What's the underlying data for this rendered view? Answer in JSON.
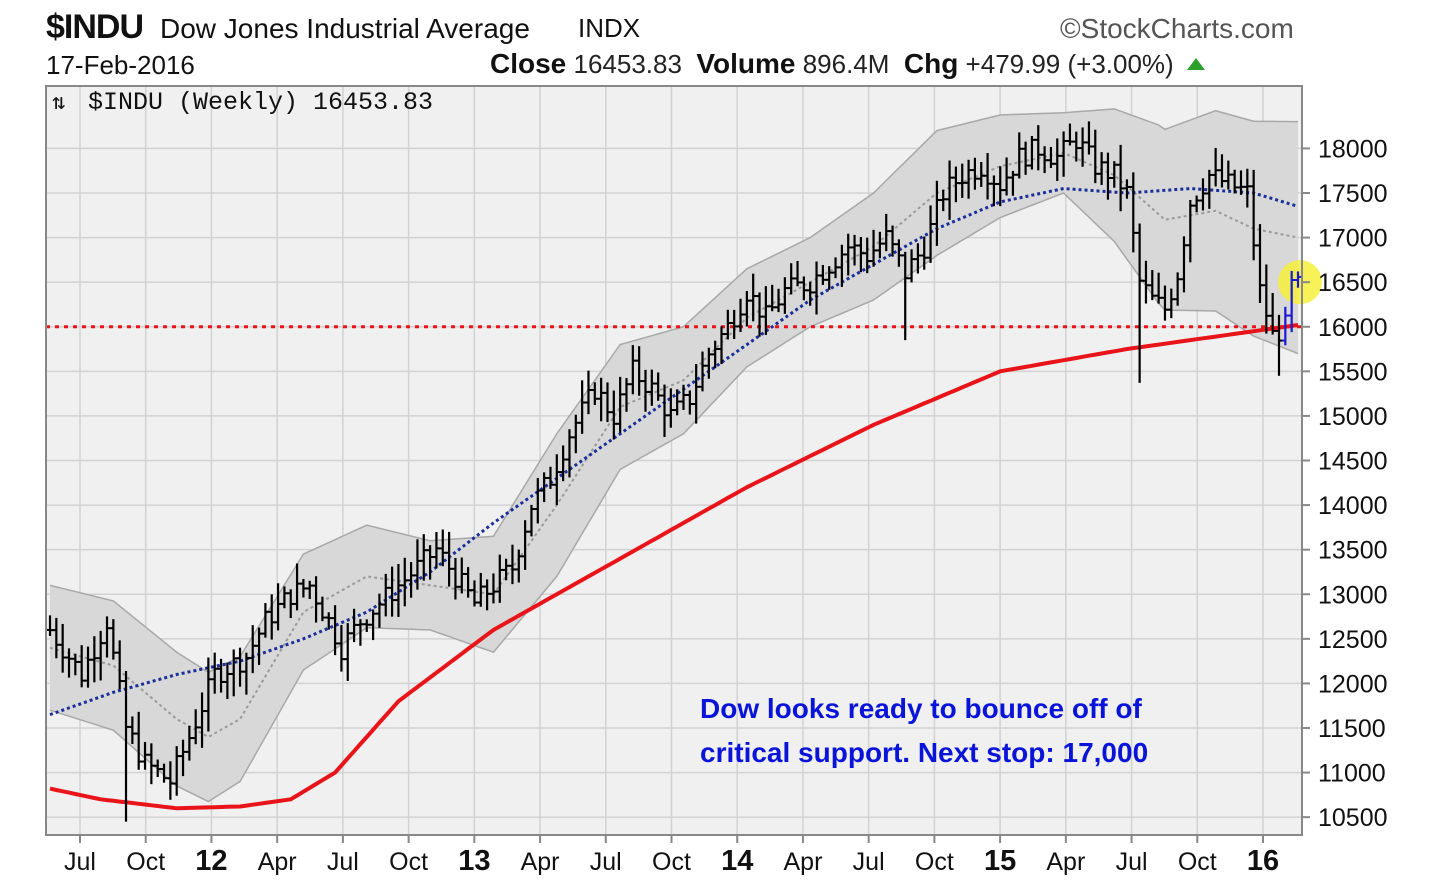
{
  "header": {
    "symbol": "$INDU",
    "name": "Dow Jones Industrial Average",
    "exchange": "INDX",
    "brand": "StockCharts.com",
    "date": "17-Feb-2016",
    "close_label": "Close",
    "close_value": "16453.83",
    "volume_label": "Volume",
    "volume_value": "896.4M",
    "chg_label": "Chg",
    "chg_value": "+479.99 (+3.00%)"
  },
  "chart_data": {
    "type": "line",
    "legend": "$INDU (Weekly) 16453.83",
    "ylim": [
      10300,
      18700
    ],
    "y_ticks": [
      10500,
      11000,
      11500,
      12000,
      12500,
      13000,
      13500,
      14000,
      14500,
      15000,
      15500,
      16000,
      16500,
      17000,
      17500,
      18000
    ],
    "x_tick_labels": [
      {
        "label": "Jul",
        "bold": false
      },
      {
        "label": "Oct",
        "bold": false
      },
      {
        "label": "12",
        "bold": true
      },
      {
        "label": "Apr",
        "bold": false
      },
      {
        "label": "Jul",
        "bold": false
      },
      {
        "label": "Oct",
        "bold": false
      },
      {
        "label": "13",
        "bold": true
      },
      {
        "label": "Apr",
        "bold": false
      },
      {
        "label": "Jul",
        "bold": false
      },
      {
        "label": "Oct",
        "bold": false
      },
      {
        "label": "14",
        "bold": true
      },
      {
        "label": "Apr",
        "bold": false
      },
      {
        "label": "Jul",
        "bold": false
      },
      {
        "label": "Oct",
        "bold": false
      },
      {
        "label": "15",
        "bold": true
      },
      {
        "label": "Apr",
        "bold": false
      },
      {
        "label": "Jul",
        "bold": false
      },
      {
        "label": "Oct",
        "bold": false
      },
      {
        "label": "16",
        "bold": true
      }
    ],
    "support_level": 16000,
    "price_keypoints": [
      [
        0,
        12600
      ],
      [
        5,
        12100
      ],
      [
        9,
        12700
      ],
      [
        12,
        11500
      ],
      [
        15,
        11100
      ],
      [
        19,
        10900
      ],
      [
        22,
        11400
      ],
      [
        26,
        12100
      ],
      [
        31,
        12300
      ],
      [
        34,
        12700
      ],
      [
        38,
        13000
      ],
      [
        41,
        13100
      ],
      [
        44,
        12700
      ],
      [
        46,
        12400
      ],
      [
        49,
        12700
      ],
      [
        52,
        12900
      ],
      [
        55,
        13100
      ],
      [
        58,
        13300
      ],
      [
        61,
        13500
      ],
      [
        64,
        13200
      ],
      [
        67,
        12900
      ],
      [
        70,
        13100
      ],
      [
        73,
        13300
      ],
      [
        76,
        14000
      ],
      [
        79,
        14300
      ],
      [
        82,
        14800
      ],
      [
        86,
        15300
      ],
      [
        89,
        15000
      ],
      [
        92,
        15500
      ],
      [
        95,
        15300
      ],
      [
        98,
        15000
      ],
      [
        101,
        15200
      ],
      [
        104,
        15700
      ],
      [
        107,
        16000
      ],
      [
        110,
        16400
      ],
      [
        113,
        16100
      ],
      [
        116,
        16400
      ],
      [
        120,
        16500
      ],
      [
        123,
        16700
      ],
      [
        126,
        16900
      ],
      [
        129,
        16800
      ],
      [
        132,
        17000
      ],
      [
        135,
        16600
      ],
      [
        138,
        16900
      ],
      [
        141,
        17500
      ],
      [
        144,
        17700
      ],
      [
        147,
        17800
      ],
      [
        150,
        17600
      ],
      [
        153,
        17900
      ],
      [
        156,
        18000
      ],
      [
        159,
        17900
      ],
      [
        162,
        18100
      ],
      [
        165,
        17800
      ],
      [
        168,
        17700
      ],
      [
        170,
        17500
      ],
      [
        172,
        16500
      ],
      [
        174,
        16300
      ],
      [
        176,
        16200
      ],
      [
        178,
        16600
      ],
      [
        180,
        17400
      ],
      [
        183,
        17700
      ],
      [
        186,
        17600
      ],
      [
        189,
        17500
      ],
      [
        191,
        16400
      ],
      [
        193,
        15900
      ],
      [
        195,
        16000
      ],
      [
        196,
        16450
      ]
    ],
    "ma_long_keypoints": [
      [
        0,
        10820
      ],
      [
        8,
        10700
      ],
      [
        20,
        10600
      ],
      [
        30,
        10620
      ],
      [
        38,
        10700
      ],
      [
        45,
        11000
      ],
      [
        55,
        11800
      ],
      [
        70,
        12600
      ],
      [
        90,
        13400
      ],
      [
        110,
        14200
      ],
      [
        130,
        14900
      ],
      [
        150,
        15500
      ],
      [
        170,
        15750
      ],
      [
        197,
        16020
      ]
    ],
    "ma_blue_keypoints": [
      [
        0,
        11650
      ],
      [
        10,
        11900
      ],
      [
        20,
        12100
      ],
      [
        30,
        12250
      ],
      [
        40,
        12500
      ],
      [
        50,
        12800
      ],
      [
        60,
        13250
      ],
      [
        70,
        13800
      ],
      [
        80,
        14300
      ],
      [
        90,
        14800
      ],
      [
        100,
        15300
      ],
      [
        110,
        15800
      ],
      [
        120,
        16300
      ],
      [
        130,
        16700
      ],
      [
        140,
        17100
      ],
      [
        150,
        17400
      ],
      [
        160,
        17550
      ],
      [
        170,
        17500
      ],
      [
        180,
        17550
      ],
      [
        190,
        17500
      ],
      [
        197,
        17350
      ]
    ],
    "ma_gray_keypoints": [
      [
        0,
        12400
      ],
      [
        10,
        12200
      ],
      [
        20,
        11600
      ],
      [
        25,
        11400
      ],
      [
        30,
        11600
      ],
      [
        40,
        12800
      ],
      [
        50,
        13200
      ],
      [
        60,
        13100
      ],
      [
        70,
        13000
      ],
      [
        80,
        14000
      ],
      [
        90,
        15100
      ],
      [
        100,
        15400
      ],
      [
        110,
        16100
      ],
      [
        120,
        16500
      ],
      [
        130,
        16900
      ],
      [
        140,
        17500
      ],
      [
        150,
        17800
      ],
      [
        160,
        17950
      ],
      [
        168,
        17700
      ],
      [
        176,
        17200
      ],
      [
        184,
        17300
      ],
      [
        190,
        17100
      ],
      [
        197,
        17000
      ]
    ],
    "bb_width_keypoints": [
      [
        0,
        700
      ],
      [
        20,
        750
      ],
      [
        40,
        650
      ],
      [
        60,
        500
      ],
      [
        80,
        800
      ],
      [
        100,
        600
      ],
      [
        120,
        500
      ],
      [
        140,
        700
      ],
      [
        160,
        450
      ],
      [
        175,
        1000
      ],
      [
        197,
        1300
      ]
    ],
    "annotation_lines": [
      "Dow looks ready to bounce off of",
      "critical support. Next stop: 17,000"
    ]
  },
  "colors": {
    "panel_bg": "#f0f0f0",
    "grid": "#d2d2d2",
    "band_fill": "#d8d8d8",
    "price_bars": "#000000",
    "recent_bars": "#1a1ad0",
    "ma_long": "#e8141a",
    "ma_blue": "#1a2f9a",
    "ma_gray": "#9a9a9a",
    "support": "#e8141a",
    "annotation": "#0a14d8",
    "highlight": "#f5f03a",
    "up_arrow": "#2ca02c"
  }
}
